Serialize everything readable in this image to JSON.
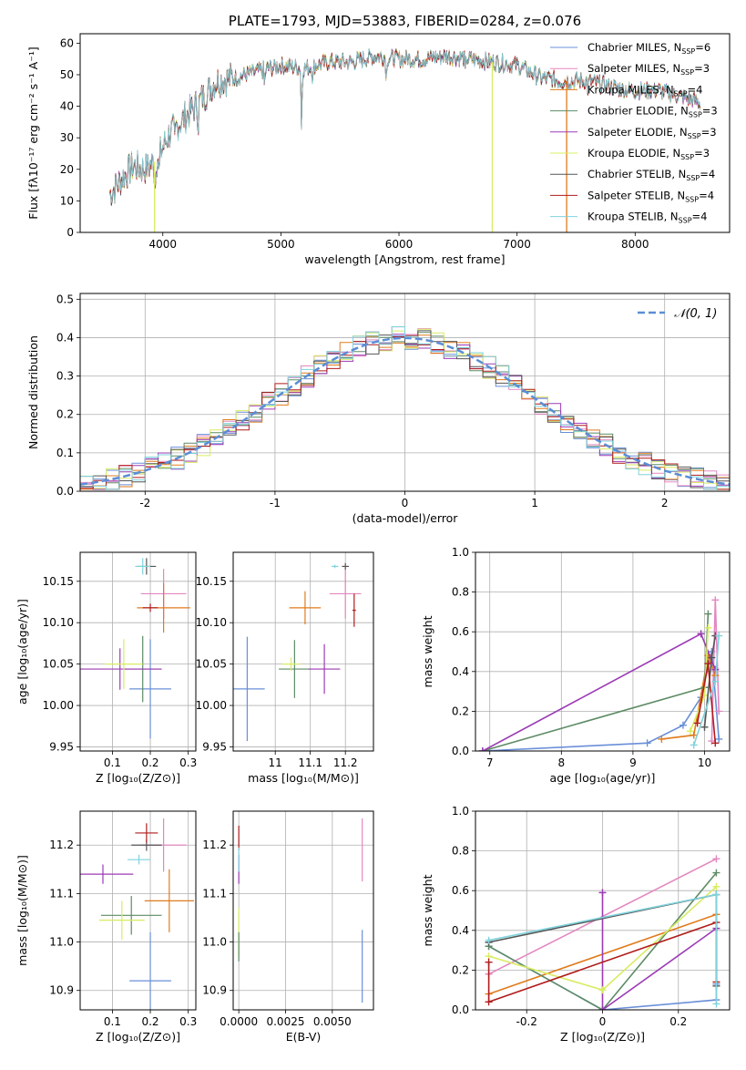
{
  "figure_title": "PLATE=1793, MJD=53883, FIBERID=0284, z=0.076",
  "colors": {
    "chabrier_miles": "#6a8fd8",
    "salpeter_miles": "#e387c0",
    "kroupa_miles": "#e07b1c",
    "chabrier_elodie": "#5d8b65",
    "salpeter_elodie": "#9c3bb5",
    "kroupa_elodie": "#d8ec62",
    "chabrier_stelib": "#555555",
    "salpeter_stelib": "#b01c1c",
    "kroupa_stelib": "#7fd3dd",
    "normal_curve": "#5b8dd6"
  },
  "chart_data": [
    {
      "id": "spectrum",
      "type": "line",
      "title": "PLATE=1793, MJD=53883, FIBERID=0284, z=0.076",
      "xlabel": "wavelength [Angstrom, rest frame]",
      "ylabel": "Flux [fλ10⁻¹⁷ erg cm⁻² s⁻¹ A⁻¹]",
      "xlim": [
        3300,
        8800
      ],
      "ylim": [
        0,
        63
      ],
      "xticks": [
        4000,
        5000,
        6000,
        7000,
        8000
      ],
      "yticks": [
        0,
        10,
        20,
        30,
        40,
        50,
        60
      ],
      "grid": false,
      "legend_position": "right",
      "continuum": {
        "x": [
          3550,
          3650,
          3750,
          3850,
          3950,
          4050,
          4150,
          4300,
          4450,
          4600,
          4800,
          5000,
          5200,
          5400,
          5600,
          5800,
          6000,
          6200,
          6400,
          6600,
          6800,
          7000,
          7200,
          7400,
          7600,
          7800,
          8000,
          8200,
          8400,
          8550
        ],
        "y": [
          12,
          17,
          21,
          20,
          23,
          31,
          35,
          41,
          48,
          49,
          51,
          53,
          52,
          54,
          54,
          56,
          55,
          55,
          56,
          55,
          54,
          53,
          49,
          48,
          48,
          46,
          45,
          45,
          43,
          41
        ]
      },
      "series": [
        {
          "name": "Chabrier MILES, N_SSP=6",
          "color_key": "chabrier_miles"
        },
        {
          "name": "Salpeter MILES, N_SSP=3",
          "color_key": "salpeter_miles"
        },
        {
          "name": "Kroupa MILES, N_SSP=4",
          "color_key": "kroupa_miles"
        },
        {
          "name": "Chabrier ELODIE, N_SSP=3",
          "color_key": "chabrier_elodie"
        },
        {
          "name": "Salpeter ELODIE, N_SSP=3",
          "color_key": "salpeter_elodie"
        },
        {
          "name": "Kroupa ELODIE, N_SSP=3",
          "color_key": "kroupa_elodie"
        },
        {
          "name": "Chabrier STELIB, N_SSP=4",
          "color_key": "chabrier_stelib"
        },
        {
          "name": "Salpeter STELIB, N_SSP=4",
          "color_key": "salpeter_stelib"
        },
        {
          "name": "Kroupa STELIB, N_SSP=4",
          "color_key": "kroupa_stelib"
        }
      ],
      "spikes": [
        {
          "x": 3930,
          "color_key": "kroupa_elodie",
          "y_low": 0
        },
        {
          "x": 6790,
          "color_key": "kroupa_elodie",
          "y_low": 0
        },
        {
          "x": 7420,
          "color_key": "kroupa_miles",
          "y_low": 0
        }
      ]
    },
    {
      "id": "residuals",
      "type": "histogram",
      "xlabel": "(data-model)/error",
      "ylabel": "Normed distribution",
      "xlim": [
        -2.5,
        2.5
      ],
      "ylim": [
        0,
        0.515
      ],
      "xticks": [
        -2,
        -1,
        0,
        1,
        2
      ],
      "yticks": [
        0.0,
        0.1,
        0.2,
        0.3,
        0.4,
        0.5
      ],
      "grid": true,
      "legend_position": "top-right",
      "legend_label": "𝒩(0, 1)",
      "bin_width": 0.1,
      "reference_curve": {
        "mean": 0,
        "sigma": 1
      },
      "series_color_keys": [
        "chabrier_miles",
        "salpeter_miles",
        "kroupa_miles",
        "chabrier_elodie",
        "salpeter_elodie",
        "kroupa_elodie",
        "chabrier_stelib",
        "salpeter_stelib",
        "kroupa_stelib"
      ]
    },
    {
      "id": "age_vs_Z",
      "type": "errorbar",
      "xlabel": "Z [log₁₀(Z/Z⊙)]",
      "ylabel": "age  [log₁₀(age/yr)]",
      "xlim": [
        0.015,
        0.32
      ],
      "ylim": [
        9.945,
        10.185
      ],
      "xticks": [
        0.1,
        0.2,
        0.3
      ],
      "yticks": [
        9.95,
        10.0,
        10.05,
        10.1,
        10.15
      ],
      "grid": true,
      "points": [
        {
          "color_key": "chabrier_miles",
          "x": 0.2,
          "xerr": 0.055,
          "y": 10.02,
          "yerr": 0.06
        },
        {
          "color_key": "salpeter_miles",
          "x": 0.235,
          "xerr": 0.06,
          "y": 10.135,
          "yerr": 0.03
        },
        {
          "color_key": "kroupa_miles",
          "x": 0.235,
          "xerr": 0.07,
          "y": 10.118,
          "yerr": 0.03
        },
        {
          "color_key": "chabrier_elodie",
          "x": 0.18,
          "xerr": 0.05,
          "y": 10.044,
          "yerr": 0.04
        },
        {
          "color_key": "salpeter_elodie",
          "x": 0.12,
          "xerr": 0.11,
          "y": 10.044,
          "yerr": 0.025
        },
        {
          "color_key": "kroupa_elodie",
          "x": 0.13,
          "xerr": 0.05,
          "y": 10.05,
          "yerr": 0.03
        },
        {
          "color_key": "chabrier_stelib",
          "x": 0.19,
          "xerr": 0.025,
          "y": 10.168,
          "yerr": 0.01
        },
        {
          "color_key": "salpeter_stelib",
          "x": 0.2,
          "xerr": 0.02,
          "y": 10.118,
          "yerr": 0.005
        },
        {
          "color_key": "kroupa_stelib",
          "x": 0.18,
          "xerr": 0.02,
          "y": 10.168,
          "yerr": 0.01
        }
      ]
    },
    {
      "id": "age_vs_mass",
      "type": "errorbar",
      "xlabel": "mass [log₁₀(M/M⊙)]",
      "ylabel": "",
      "xlim": [
        10.88,
        11.28
      ],
      "ylim": [
        9.945,
        10.185
      ],
      "xticks": [
        11.0,
        11.1,
        11.2
      ],
      "yticks": [
        9.95,
        10.0,
        10.05,
        10.1,
        10.15
      ],
      "grid": true,
      "points": [
        {
          "color_key": "chabrier_miles",
          "x": 10.92,
          "xerr": 0.05,
          "y": 10.02,
          "yerr": 0.063
        },
        {
          "color_key": "salpeter_miles",
          "x": 11.2,
          "xerr": 0.045,
          "y": 10.135,
          "yerr": 0.03
        },
        {
          "color_key": "kroupa_miles",
          "x": 11.085,
          "xerr": 0.045,
          "y": 10.118,
          "yerr": 0.02
        },
        {
          "color_key": "chabrier_elodie",
          "x": 11.055,
          "xerr": 0.045,
          "y": 10.044,
          "yerr": 0.035
        },
        {
          "color_key": "salpeter_elodie",
          "x": 11.14,
          "xerr": 0.045,
          "y": 10.044,
          "yerr": 0.03
        },
        {
          "color_key": "kroupa_elodie",
          "x": 11.045,
          "xerr": 0.025,
          "y": 10.05,
          "yerr": 0.008
        },
        {
          "color_key": "chabrier_stelib",
          "x": 11.2,
          "xerr": 0.01,
          "y": 10.168,
          "yerr": 0.004
        },
        {
          "color_key": "salpeter_stelib",
          "x": 11.225,
          "xerr": 0.005,
          "y": 10.115,
          "yerr": 0.02
        },
        {
          "color_key": "kroupa_stelib",
          "x": 11.17,
          "xerr": 0.01,
          "y": 10.168,
          "yerr": 0.002
        }
      ]
    },
    {
      "id": "weight_vs_age",
      "type": "line",
      "xlabel": "age  [log₁₀(age/yr)]",
      "ylabel": "mass weight",
      "xlim": [
        6.8,
        10.35
      ],
      "ylim": [
        0,
        1.0
      ],
      "xticks": [
        7,
        8,
        9,
        10
      ],
      "yticks": [
        0.0,
        0.2,
        0.4,
        0.6,
        0.8,
        1.0
      ],
      "grid": true,
      "series": [
        {
          "color_key": "chabrier_miles",
          "x": [
            6.9,
            9.2,
            9.7,
            9.95,
            10.1,
            10.2
          ],
          "y": [
            0.0,
            0.04,
            0.13,
            0.27,
            0.5,
            0.06
          ]
        },
        {
          "color_key": "salpeter_miles",
          "x": [
            10.1,
            10.15,
            10.2
          ],
          "y": [
            0.05,
            0.76,
            0.2
          ]
        },
        {
          "color_key": "kroupa_miles",
          "x": [
            9.4,
            9.85,
            10.05,
            10.15
          ],
          "y": [
            0.06,
            0.08,
            0.48,
            0.38
          ]
        },
        {
          "color_key": "chabrier_elodie",
          "x": [
            6.9,
            10.0,
            10.05
          ],
          "y": [
            0.0,
            0.32,
            0.69
          ]
        },
        {
          "color_key": "salpeter_elodie",
          "x": [
            6.9,
            9.95,
            10.15
          ],
          "y": [
            0.0,
            0.59,
            0.41
          ]
        },
        {
          "color_key": "kroupa_elodie",
          "x": [
            9.8,
            10.0,
            10.05
          ],
          "y": [
            0.1,
            0.28,
            0.62
          ]
        },
        {
          "color_key": "chabrier_stelib",
          "x": [
            10.0,
            10.1,
            10.15
          ],
          "y": [
            0.12,
            0.47,
            0.58
          ]
        },
        {
          "color_key": "salpeter_stelib",
          "x": [
            9.9,
            10.05,
            10.15
          ],
          "y": [
            0.14,
            0.44,
            0.04
          ]
        },
        {
          "color_key": "kroupa_stelib",
          "x": [
            9.85,
            10.15,
            10.2
          ],
          "y": [
            0.03,
            0.35,
            0.58
          ]
        }
      ]
    },
    {
      "id": "weight_vs_Z",
      "type": "line",
      "xlabel": "Z [log₁₀(Z/Z⊙)]",
      "ylabel": "mass weight",
      "xlim": [
        -0.335,
        0.335
      ],
      "ylim": [
        0,
        1.0
      ],
      "xticks": [
        -0.2,
        0.0,
        0.2
      ],
      "yticks": [
        0.0,
        0.2,
        0.4,
        0.6,
        0.8,
        1.0
      ],
      "grid": true,
      "series": [
        {
          "color_key": "chabrier_miles",
          "x": [
            -0.3,
            0.0,
            0.3,
            0.3
          ],
          "y": [
            0.32,
            0.0,
            0.05,
            0.13
          ]
        },
        {
          "color_key": "salpeter_miles",
          "x": [
            -0.3,
            0.3
          ],
          "y": [
            0.18,
            0.76
          ]
        },
        {
          "color_key": "kroupa_miles",
          "x": [
            -0.3,
            0.3
          ],
          "y": [
            0.08,
            0.48
          ]
        },
        {
          "color_key": "chabrier_elodie",
          "x": [
            -0.3,
            0.0,
            0.3
          ],
          "y": [
            0.32,
            0.0,
            0.69
          ]
        },
        {
          "color_key": "salpeter_elodie",
          "x": [
            0.0,
            0.0,
            0.3
          ],
          "y": [
            0.59,
            0.0,
            0.41
          ]
        },
        {
          "color_key": "kroupa_elodie",
          "x": [
            -0.3,
            0.0,
            0.3
          ],
          "y": [
            0.27,
            0.1,
            0.62
          ]
        },
        {
          "color_key": "chabrier_stelib",
          "x": [
            -0.3,
            0.3,
            0.3
          ],
          "y": [
            0.34,
            0.58,
            0.12
          ]
        },
        {
          "color_key": "salpeter_stelib",
          "x": [
            -0.3,
            -0.3,
            0.3,
            0.3
          ],
          "y": [
            0.24,
            0.04,
            0.44,
            0.14
          ]
        },
        {
          "color_key": "kroupa_stelib",
          "x": [
            -0.3,
            0.3,
            0.3
          ],
          "y": [
            0.35,
            0.58,
            0.03
          ]
        }
      ]
    },
    {
      "id": "mass_vs_Z",
      "type": "errorbar",
      "xlabel": "Z [log₁₀(Z/Z⊙)]",
      "ylabel": "mass [log₁₀(M/M⊙)]",
      "xlim": [
        0.015,
        0.32
      ],
      "ylim": [
        10.86,
        11.27
      ],
      "xticks": [
        0.1,
        0.2,
        0.3
      ],
      "yticks": [
        10.9,
        11.0,
        11.1,
        11.2
      ],
      "grid": true,
      "points": [
        {
          "color_key": "chabrier_miles",
          "x": 0.2,
          "xerr": 0.055,
          "y": 10.92,
          "yerr": 0.1
        },
        {
          "color_key": "salpeter_miles",
          "x": 0.235,
          "xerr": 0.06,
          "y": 11.2,
          "yerr": 0.055
        },
        {
          "color_key": "kroupa_miles",
          "x": 0.25,
          "xerr": 0.065,
          "y": 11.085,
          "yerr": 0.065
        },
        {
          "color_key": "chabrier_elodie",
          "x": 0.15,
          "xerr": 0.08,
          "y": 11.055,
          "yerr": 0.04
        },
        {
          "color_key": "salpeter_elodie",
          "x": 0.075,
          "xerr": 0.08,
          "y": 11.14,
          "yerr": 0.02
        },
        {
          "color_key": "kroupa_elodie",
          "x": 0.125,
          "xerr": 0.06,
          "y": 11.045,
          "yerr": 0.04
        },
        {
          "color_key": "chabrier_stelib",
          "x": 0.19,
          "xerr": 0.04,
          "y": 11.2,
          "yerr": 0.012
        },
        {
          "color_key": "salpeter_stelib",
          "x": 0.19,
          "xerr": 0.03,
          "y": 11.225,
          "yerr": 0.02
        },
        {
          "color_key": "kroupa_stelib",
          "x": 0.17,
          "xerr": 0.03,
          "y": 11.17,
          "yerr": 0.01
        }
      ]
    },
    {
      "id": "mass_vs_ebv",
      "type": "errorbar",
      "xlabel": "E(B-V)",
      "ylabel": "",
      "xlim": [
        -0.0003,
        0.0072
      ],
      "ylim": [
        10.86,
        11.27
      ],
      "xticks": [
        0.0,
        0.0025,
        0.005
      ],
      "xtick_labels": [
        "0.0000",
        "0.0025",
        "0.0050"
      ],
      "yticks": [
        10.9,
        11.0,
        11.1,
        11.2
      ],
      "yticklabels": [
        "10.9",
        "11.0",
        "11.1",
        "11.2"
      ],
      "grid": true,
      "points": [
        {
          "color_key": "chabrier_miles",
          "x": 0.0066,
          "xerr": 0,
          "y": 10.95,
          "yerr": 0.075
        },
        {
          "color_key": "salpeter_miles",
          "x": 0.0066,
          "xerr": 0,
          "y": 11.19,
          "yerr": 0.065
        },
        {
          "color_key": "kroupa_elodie",
          "x": 0.0,
          "xerr": 0,
          "y": 11.02,
          "yerr": 0.05
        },
        {
          "color_key": "chabrier_elodie",
          "x": 0.0,
          "xerr": 0,
          "y": 10.99,
          "yerr": 0.03
        },
        {
          "color_key": "salpeter_elodie",
          "x": 0.0,
          "xerr": 0,
          "y": 11.15,
          "yerr": 0.03
        },
        {
          "color_key": "salpeter_stelib",
          "x": 0.0,
          "xerr": 0,
          "y": 11.215,
          "yerr": 0.025
        },
        {
          "color_key": "kroupa_stelib",
          "x": 0.0,
          "xerr": 0,
          "y": 11.17,
          "yerr": 0.025
        }
      ]
    }
  ]
}
